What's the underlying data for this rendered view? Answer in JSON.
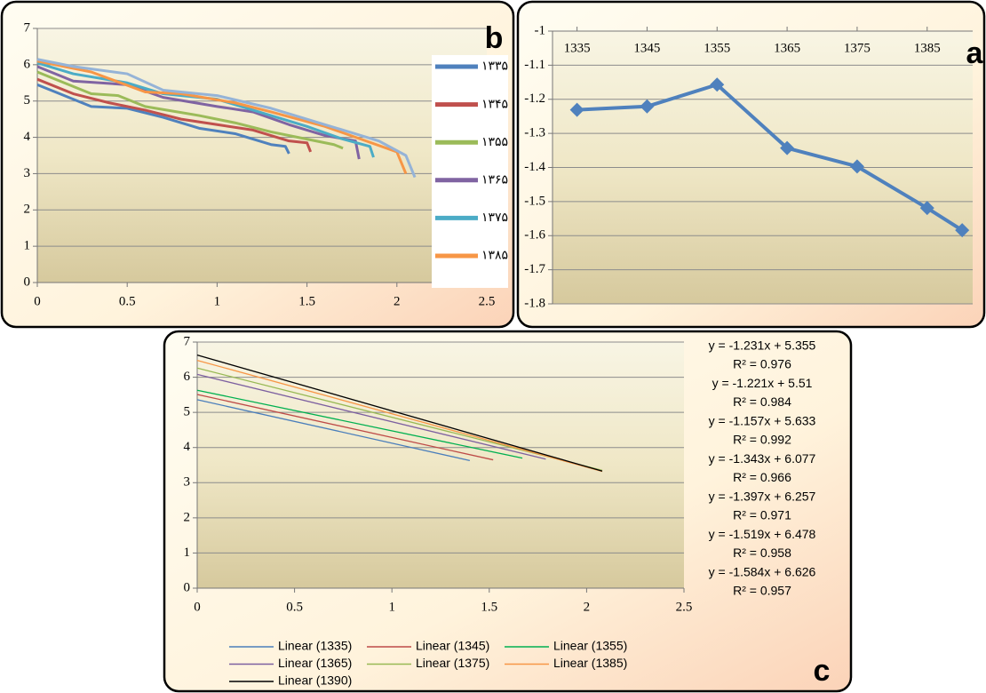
{
  "chart_data": [
    {
      "type": "line",
      "panel_label": "b",
      "xlim": [
        0,
        2.5
      ],
      "xticks": [
        0,
        0.5,
        1,
        1.5,
        2,
        2.5
      ],
      "ylim": [
        0,
        7
      ],
      "yticks": [
        0,
        1,
        2,
        3,
        4,
        5,
        6,
        7
      ],
      "grid": true,
      "legend": "right",
      "line_width": 3,
      "series": [
        {
          "name": "۱۳۳۵",
          "color": "#4f81bd",
          "x": [
            0,
            0.1,
            0.3,
            0.5,
            0.7,
            0.9,
            1.1,
            1.3,
            1.38,
            1.4
          ],
          "values": [
            5.45,
            5.25,
            4.85,
            4.8,
            4.55,
            4.25,
            4.1,
            3.8,
            3.75,
            3.55
          ]
        },
        {
          "name": "۱۳۴۵",
          "color": "#c0504d",
          "x": [
            0,
            0.2,
            0.4,
            0.6,
            0.8,
            1.0,
            1.2,
            1.4,
            1.5,
            1.52
          ],
          "values": [
            5.6,
            5.2,
            4.95,
            4.75,
            4.5,
            4.35,
            4.2,
            3.9,
            3.85,
            3.6
          ]
        },
        {
          "name": "۱۳۵۵",
          "color": "#9bbb59",
          "x": [
            0,
            0.3,
            0.45,
            0.6,
            0.9,
            1.1,
            1.3,
            1.5,
            1.65,
            1.7
          ],
          "values": [
            5.8,
            5.2,
            5.15,
            4.85,
            4.6,
            4.4,
            4.15,
            3.95,
            3.8,
            3.7
          ]
        },
        {
          "name": "۱۳۶۵",
          "color": "#8064a2",
          "x": [
            0,
            0.2,
            0.5,
            0.7,
            1.0,
            1.2,
            1.4,
            1.6,
            1.77,
            1.79
          ],
          "values": [
            5.95,
            5.55,
            5.45,
            5.1,
            4.85,
            4.7,
            4.35,
            4.05,
            3.9,
            3.4
          ]
        },
        {
          "name": "۱۳۷۵",
          "color": "#4bacc6",
          "x": [
            0,
            0.2,
            0.5,
            0.7,
            1.0,
            1.2,
            1.5,
            1.7,
            1.85,
            1.87
          ],
          "values": [
            6.05,
            5.75,
            5.5,
            5.2,
            5.05,
            4.75,
            4.3,
            3.95,
            3.75,
            3.45
          ]
        },
        {
          "name": "۱۳۸۵",
          "color": "#f79646",
          "x": [
            0,
            0.3,
            0.6,
            0.8,
            1.1,
            1.3,
            1.6,
            1.8,
            2.0,
            2.05
          ],
          "values": [
            6.1,
            5.8,
            5.25,
            5.2,
            4.95,
            4.7,
            4.3,
            3.95,
            3.6,
            3.0
          ]
        },
        {
          "color": "#95b3d7",
          "x": [
            0,
            0.2,
            0.5,
            0.7,
            1.0,
            1.3,
            1.6,
            1.9,
            2.05,
            2.1
          ],
          "values": [
            6.15,
            5.95,
            5.75,
            5.3,
            5.15,
            4.8,
            4.35,
            3.9,
            3.5,
            2.9
          ]
        }
      ]
    },
    {
      "type": "line",
      "panel_label": "a",
      "x": [
        1335,
        1345,
        1355,
        1365,
        1375,
        1385,
        1390
      ],
      "xlim": [
        1331.5,
        1391.5
      ],
      "xticks": [
        1335,
        1345,
        1355,
        1365,
        1375,
        1385
      ],
      "x_axis_position": "top",
      "ylim": [
        -1.8,
        -1
      ],
      "yticks": [
        -1,
        -1.1,
        -1.2,
        -1.3,
        -1.4,
        -1.5,
        -1.6,
        -1.7,
        -1.8
      ],
      "grid": true,
      "marker": "diamond",
      "line_width": 4,
      "series": [
        {
          "color": "#4f81bd",
          "values": [
            -1.231,
            -1.221,
            -1.157,
            -1.343,
            -1.397,
            -1.519,
            -1.584
          ]
        }
      ]
    },
    {
      "type": "line",
      "panel_label": "c",
      "xlim": [
        0,
        2.5
      ],
      "xticks": [
        0,
        0.5,
        1,
        1.5,
        2,
        2.5
      ],
      "ylim": [
        0,
        7
      ],
      "yticks": [
        0,
        1,
        2,
        3,
        4,
        5,
        6,
        7
      ],
      "grid": true,
      "legend": "bottom",
      "line_width": 1.3,
      "series": [
        {
          "name": "Linear (1335)",
          "color": "#4a7ebb",
          "x": [
            0,
            1.4
          ],
          "values": [
            5.36,
            3.63
          ],
          "equation": "y = -1.231x + 5.355",
          "r2": "R² = 0.976",
          "label_color": "#4f81bd"
        },
        {
          "name": "Linear (1345)",
          "color": "#be4b48",
          "x": [
            0,
            1.52
          ],
          "values": [
            5.51,
            3.65
          ],
          "equation": "y = -1.221x + 5.51",
          "r2": "R² = 0.984",
          "label_color": "#953735"
        },
        {
          "name": "Linear (1355)",
          "color": "#00b050",
          "x": [
            0,
            1.67
          ],
          "values": [
            5.63,
            3.7
          ],
          "equation": "y = -1.157x + 5.633",
          "r2": "R² = 0.992",
          "label_color": "#00b050"
        },
        {
          "name": "Linear (1365)",
          "color": "#7d60a0",
          "x": [
            0,
            1.79
          ],
          "values": [
            6.08,
            3.67
          ],
          "equation": "y = -1.343x + 6.077",
          "r2": "R² = 0.966",
          "label_color": "#604a7b"
        },
        {
          "name": "Linear (1375)",
          "color": "#98b954",
          "x": [
            0,
            2.08
          ],
          "values": [
            6.26,
            3.35
          ],
          "equation": "y = -1.397x + 6.257",
          "r2": "R² = 0.971",
          "label_color": "#948a54"
        },
        {
          "name": "Linear (1385)",
          "color": "#f79646",
          "x": [
            0,
            2.08
          ],
          "values": [
            6.48,
            3.32
          ],
          "equation": "y = -1.519x + 6.478",
          "r2": "R² = 0.958",
          "label_color": "#e46c0a"
        },
        {
          "name": "Linear (1390)",
          "color": "#000000",
          "x": [
            0,
            2.08
          ],
          "values": [
            6.63,
            3.33
          ],
          "equation": "y = -1.584x + 6.626",
          "r2": "R² = 0.957",
          "label_color": "#31859c"
        }
      ]
    }
  ]
}
